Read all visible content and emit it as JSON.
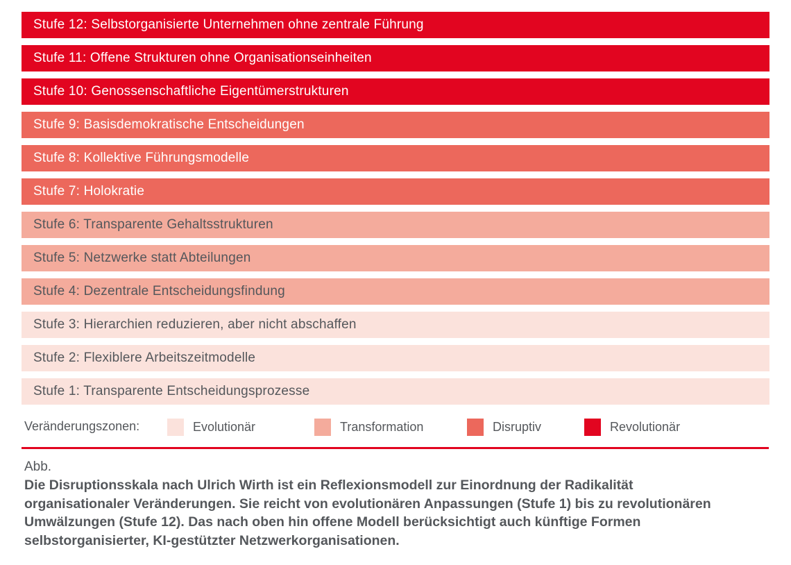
{
  "colors": {
    "revolutionaer": "#E20520",
    "disruptiv": "#EC685C",
    "transformation": "#F4AB9C",
    "evolutionaer": "#FBE2DC",
    "text_dark": "#54575B",
    "text_light": "#FFFFFF",
    "divider": "#E20520",
    "background": "#FFFFFF"
  },
  "bars": [
    {
      "label": "Stufe 12: Selbstorganisierte Unternehmen ohne zentrale Führung",
      "zone": "Revolutionär",
      "color": "#E20520",
      "text_color": "#FFFFFF"
    },
    {
      "label": "Stufe 11: Offene Strukturen ohne Organisationseinheiten",
      "zone": "Revolutionär",
      "color": "#E20520",
      "text_color": "#FFFFFF"
    },
    {
      "label": "Stufe 10: Genossenschaftliche Eigentümerstrukturen",
      "zone": "Revolutionär",
      "color": "#E20520",
      "text_color": "#FFFFFF"
    },
    {
      "label": "Stufe 9: Basisdemokratische Entscheidungen",
      "zone": "Disruptiv",
      "color": "#EC685C",
      "text_color": "#FFFFFF"
    },
    {
      "label": "Stufe 8: Kollektive Führungsmodelle",
      "zone": "Disruptiv",
      "color": "#EC685C",
      "text_color": "#FFFFFF"
    },
    {
      "label": "Stufe 7: Holokratie",
      "zone": "Disruptiv",
      "color": "#EC685C",
      "text_color": "#FFFFFF"
    },
    {
      "label": "Stufe 6: Transparente Gehaltsstrukturen",
      "zone": "Transformation",
      "color": "#F4AB9C",
      "text_color": "#54575B"
    },
    {
      "label": "Stufe 5: Netzwerke statt Abteilungen",
      "zone": "Transformation",
      "color": "#F4AB9C",
      "text_color": "#54575B"
    },
    {
      "label": "Stufe 4: Dezentrale Entscheidungsfindung",
      "zone": "Transformation",
      "color": "#F4AB9C",
      "text_color": "#54575B"
    },
    {
      "label": "Stufe 3: Hierarchien reduzieren, aber nicht abschaffen",
      "zone": "Evolutionär",
      "color": "#FBE2DC",
      "text_color": "#54575B"
    },
    {
      "label": "Stufe 2: Flexiblere Arbeitszeitmodelle",
      "zone": "Evolutionär",
      "color": "#FBE2DC",
      "text_color": "#54575B"
    },
    {
      "label": "Stufe 1: Transparente Entscheidungsprozesse",
      "zone": "Evolutionär",
      "color": "#FBE2DC",
      "text_color": "#54575B"
    }
  ],
  "legend": {
    "title": "Veränderungszonen:",
    "items": [
      {
        "label": "Evolutionär",
        "color": "#FBE2DC"
      },
      {
        "label": "Transformation",
        "color": "#F4AB9C"
      },
      {
        "label": "Disruptiv",
        "color": "#EC685C"
      },
      {
        "label": "Revolutionär",
        "color": "#E20520"
      }
    ]
  },
  "caption": {
    "prefix": "Abb.",
    "text": "Die Disruptionsskala nach Ulrich Wirth ist ein Reflexionsmodell zur Einordnung der Radikalität organisationaler Veränderungen. Sie reicht von evolutionären Anpassungen (Stufe 1) bis zu revolutionären Umwälzungen (Stufe 12). Das nach oben hin offene Modell berücksichtigt auch künftige Formen selbstorganisierter, KI-gestützter Netzwerkorganisationen."
  },
  "chart_data": {
    "type": "bar",
    "orientation": "horizontal",
    "note": "All 12 bars span the full chart width; the fill color encodes the Veränderungszone of each Stufe. Stufe 12 is at the top, Stufe 1 at the bottom.",
    "categories": [
      "Stufe 12",
      "Stufe 11",
      "Stufe 10",
      "Stufe 9",
      "Stufe 8",
      "Stufe 7",
      "Stufe 6",
      "Stufe 5",
      "Stufe 4",
      "Stufe 3",
      "Stufe 2",
      "Stufe 1"
    ],
    "values": [
      1,
      1,
      1,
      1,
      1,
      1,
      1,
      1,
      1,
      1,
      1,
      1
    ],
    "bar_labels": [
      "Stufe 12: Selbstorganisierte Unternehmen ohne zentrale Führung",
      "Stufe 11: Offene Strukturen ohne Organisationseinheiten",
      "Stufe 10: Genossenschaftliche Eigentümerstrukturen",
      "Stufe 9: Basisdemokratische Entscheidungen",
      "Stufe 8: Kollektive Führungsmodelle",
      "Stufe 7: Holokratie",
      "Stufe 6: Transparente Gehaltsstrukturen",
      "Stufe 5: Netzwerke statt Abteilungen",
      "Stufe 4: Dezentrale Entscheidungsfindung",
      "Stufe 3: Hierarchien reduzieren, aber nicht abschaffen",
      "Stufe 2: Flexiblere Arbeitszeitmodelle",
      "Stufe 1: Transparente Entscheidungsprozesse"
    ],
    "zone_by_category": [
      "Revolutionär",
      "Revolutionär",
      "Revolutionär",
      "Disruptiv",
      "Disruptiv",
      "Disruptiv",
      "Transformation",
      "Transformation",
      "Transformation",
      "Evolutionär",
      "Evolutionär",
      "Evolutionär"
    ],
    "legend": {
      "title": "Veränderungszonen:",
      "entries": [
        "Evolutionär",
        "Transformation",
        "Disruptiv",
        "Revolutionär"
      ],
      "position": "bottom"
    },
    "title": "",
    "xlabel": "",
    "ylabel": ""
  }
}
